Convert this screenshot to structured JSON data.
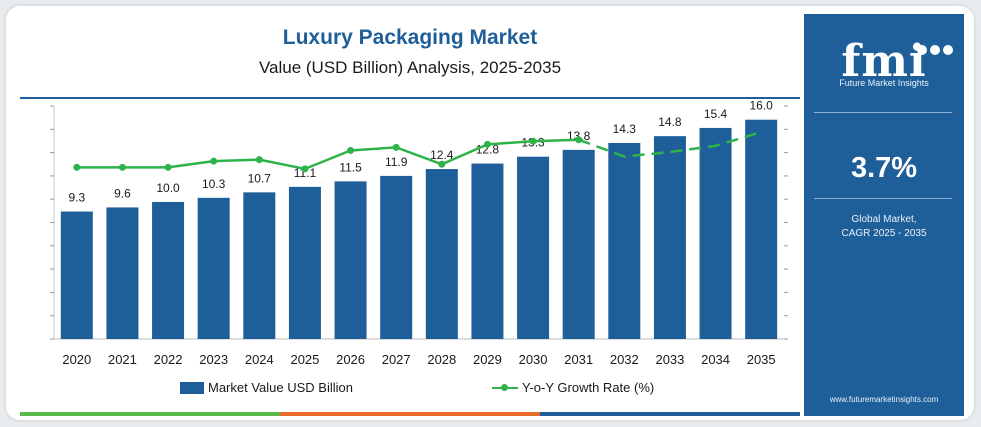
{
  "title": "Luxury Packaging Market",
  "subtitle": "Value (USD Billion) Analysis, 2025-2035",
  "sidebar": {
    "logo_text": "fmi",
    "logo_tagline": "Future Market Insights",
    "cagr_value": "3.7%",
    "cagr_label_line1": "Global Market,",
    "cagr_label_line2": "CAGR 2025 - 2035",
    "website": "www.futuremarketinsights.com"
  },
  "legend": {
    "bar_label": "Market Value USD Billion",
    "line_label": "Y-o-Y Growth Rate (%)"
  },
  "colors": {
    "bar": "#1f5f99",
    "line": "#2db34a",
    "title": "#1f5f99",
    "sidebar": "#1f5f99",
    "stripe": [
      "#5bb84a",
      "#e86b2c",
      "#1f5f99"
    ]
  },
  "chart_data": {
    "type": "bar",
    "categories": [
      "2020",
      "2021",
      "2022",
      "2023",
      "2024",
      "2025",
      "2026",
      "2027",
      "2028",
      "2029",
      "2030",
      "2031",
      "2032",
      "2033",
      "2034",
      "2035"
    ],
    "series": [
      {
        "name": "Market Value USD Billion",
        "type": "bar",
        "values": [
          9.3,
          9.6,
          10.0,
          10.3,
          10.7,
          11.1,
          11.5,
          11.9,
          12.4,
          12.8,
          13.3,
          13.8,
          14.3,
          14.8,
          15.4,
          16.0
        ],
        "labels": [
          "9.3",
          "9.6",
          "10.0",
          "10.3",
          "10.7",
          "11.1",
          "11.5",
          "11.9",
          "12.4",
          "12.8",
          "13.3",
          "13.8",
          "14.3",
          "14.8",
          "15.4",
          "16.0"
        ]
      },
      {
        "name": "Y-o-Y Growth Rate (%)",
        "type": "line",
        "values": [
          3.2,
          3.2,
          3.2,
          3.4,
          3.45,
          3.15,
          3.75,
          3.85,
          3.3,
          3.95,
          4.05,
          4.1,
          3.55,
          3.7,
          3.9,
          4.35
        ],
        "dashed_from_index": 11
      }
    ],
    "ylim": [
      0,
      17
    ],
    "y2lim": [
      -2.4,
      5.2
    ],
    "grid": false,
    "legend_position": "bottom"
  }
}
